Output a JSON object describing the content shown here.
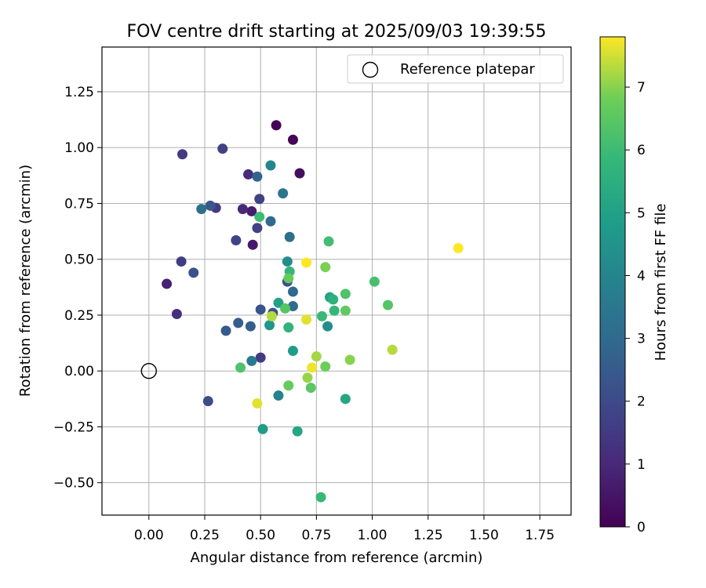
{
  "chart_data": {
    "type": "scatter",
    "title": "FOV centre drift starting at 2025/09/03 19:39:55",
    "xlabel": "Angular distance from reference (arcmin)",
    "ylabel": "Rotation from reference (arcmin)",
    "xlim": [
      -0.21,
      1.89
    ],
    "ylim": [
      -0.645,
      1.45
    ],
    "grid": true,
    "x_ticks": [
      0.0,
      0.25,
      0.5,
      0.75,
      1.0,
      1.25,
      1.5,
      1.75
    ],
    "x_tick_labels": [
      "0.00",
      "0.25",
      "0.50",
      "0.75",
      "1.00",
      "1.25",
      "1.50",
      "1.75"
    ],
    "y_ticks": [
      -0.5,
      -0.25,
      0.0,
      0.25,
      0.5,
      0.75,
      1.0,
      1.25
    ],
    "y_tick_labels": [
      "−0.50",
      "−0.25",
      "0.00",
      "0.25",
      "0.50",
      "0.75",
      "1.00",
      "1.25"
    ],
    "legend": {
      "label": "Reference platepar",
      "position": "top-right"
    },
    "reference_point": {
      "x": 0.0,
      "y": 0.0
    },
    "colorbar": {
      "label": "Hours from first FF file",
      "min": 0,
      "max": 7.8,
      "colormap": "viridis",
      "ticks": [
        0,
        1,
        2,
        3,
        4,
        5,
        6,
        7
      ],
      "tick_labels": [
        "0",
        "1",
        "2",
        "3",
        "4",
        "5",
        "6",
        "7"
      ]
    },
    "points": [
      {
        "x": 0.57,
        "y": 1.1,
        "hours": 0.05
      },
      {
        "x": 0.645,
        "y": 1.035,
        "hours": 0.1
      },
      {
        "x": 0.675,
        "y": 0.885,
        "hours": 0.3
      },
      {
        "x": 0.465,
        "y": 0.565,
        "hours": 0.6
      },
      {
        "x": 0.08,
        "y": 0.39,
        "hours": 0.8
      },
      {
        "x": 0.46,
        "y": 0.715,
        "hours": 0.7
      },
      {
        "x": 0.42,
        "y": 0.725,
        "hours": 1.0
      },
      {
        "x": 0.445,
        "y": 0.88,
        "hours": 1.1
      },
      {
        "x": 0.125,
        "y": 0.255,
        "hours": 1.2
      },
      {
        "x": 0.15,
        "y": 0.97,
        "hours": 1.5
      },
      {
        "x": 0.145,
        "y": 0.49,
        "hours": 1.6
      },
      {
        "x": 0.33,
        "y": 0.995,
        "hours": 1.7
      },
      {
        "x": 0.3,
        "y": 0.73,
        "hours": 1.5
      },
      {
        "x": 0.5,
        "y": 0.06,
        "hours": 1.6
      },
      {
        "x": 0.495,
        "y": 0.77,
        "hours": 1.7
      },
      {
        "x": 0.39,
        "y": 0.585,
        "hours": 1.8
      },
      {
        "x": 0.485,
        "y": 0.64,
        "hours": 1.7
      },
      {
        "x": 0.62,
        "y": 0.4,
        "hours": 2.1
      },
      {
        "x": 0.2,
        "y": 0.44,
        "hours": 2.2
      },
      {
        "x": 0.265,
        "y": -0.135,
        "hours": 2.0
      },
      {
        "x": 0.275,
        "y": 0.74,
        "hours": 2.4
      },
      {
        "x": 0.5,
        "y": 0.275,
        "hours": 2.3
      },
      {
        "x": 0.555,
        "y": 0.26,
        "hours": 2.3
      },
      {
        "x": 0.345,
        "y": 0.18,
        "hours": 2.5
      },
      {
        "x": 0.4,
        "y": 0.215,
        "hours": 2.6
      },
      {
        "x": 0.455,
        "y": 0.2,
        "hours": 2.6
      },
      {
        "x": 0.235,
        "y": 0.725,
        "hours": 3.2
      },
      {
        "x": 0.485,
        "y": 0.87,
        "hours": 2.8
      },
      {
        "x": 0.545,
        "y": 0.67,
        "hours": 3.0
      },
      {
        "x": 0.645,
        "y": 0.355,
        "hours": 3.0
      },
      {
        "x": 0.645,
        "y": 0.29,
        "hours": 3.1
      },
      {
        "x": 0.63,
        "y": 0.6,
        "hours": 3.2
      },
      {
        "x": 0.6,
        "y": 0.795,
        "hours": 3.4
      },
      {
        "x": 0.46,
        "y": 0.045,
        "hours": 3.6
      },
      {
        "x": 0.58,
        "y": -0.11,
        "hours": 3.9
      },
      {
        "x": 0.545,
        "y": 0.92,
        "hours": 4.0
      },
      {
        "x": 0.62,
        "y": 0.49,
        "hours": 4.3
      },
      {
        "x": 0.8,
        "y": 0.2,
        "hours": 4.3
      },
      {
        "x": 0.54,
        "y": 0.205,
        "hours": 4.6
      },
      {
        "x": 0.645,
        "y": 0.09,
        "hours": 4.8
      },
      {
        "x": 0.51,
        "y": -0.26,
        "hours": 4.8
      },
      {
        "x": 0.58,
        "y": 0.305,
        "hours": 5.0
      },
      {
        "x": 0.81,
        "y": 0.33,
        "hours": 5.1
      },
      {
        "x": 0.665,
        "y": -0.27,
        "hours": 5.2
      },
      {
        "x": 0.88,
        "y": -0.125,
        "hours": 5.2
      },
      {
        "x": 0.825,
        "y": 0.32,
        "hours": 5.6
      },
      {
        "x": 0.625,
        "y": 0.195,
        "hours": 5.7
      },
      {
        "x": 0.63,
        "y": 0.445,
        "hours": 5.8
      },
      {
        "x": 0.83,
        "y": 0.27,
        "hours": 5.8
      },
      {
        "x": 0.775,
        "y": 0.245,
        "hours": 5.9
      },
      {
        "x": 0.77,
        "y": -0.565,
        "hours": 5.9
      },
      {
        "x": 0.495,
        "y": 0.69,
        "hours": 6.0
      },
      {
        "x": 0.805,
        "y": 0.58,
        "hours": 6.1
      },
      {
        "x": 1.01,
        "y": 0.4,
        "hours": 6.2
      },
      {
        "x": 0.41,
        "y": 0.015,
        "hours": 6.3
      },
      {
        "x": 0.88,
        "y": 0.345,
        "hours": 6.3
      },
      {
        "x": 1.07,
        "y": 0.295,
        "hours": 6.4
      },
      {
        "x": 0.61,
        "y": 0.28,
        "hours": 6.4
      },
      {
        "x": 0.88,
        "y": 0.27,
        "hours": 6.6
      },
      {
        "x": 0.725,
        "y": -0.075,
        "hours": 6.5
      },
      {
        "x": 0.625,
        "y": -0.065,
        "hours": 6.7
      },
      {
        "x": 0.625,
        "y": 0.415,
        "hours": 6.7
      },
      {
        "x": 0.79,
        "y": 0.465,
        "hours": 6.9
      },
      {
        "x": 0.79,
        "y": 0.02,
        "hours": 6.8
      },
      {
        "x": 0.9,
        "y": 0.05,
        "hours": 7.0
      },
      {
        "x": 0.75,
        "y": 0.065,
        "hours": 7.2
      },
      {
        "x": 0.71,
        "y": -0.03,
        "hours": 7.1
      },
      {
        "x": 1.09,
        "y": 0.095,
        "hours": 7.3
      },
      {
        "x": 0.55,
        "y": 0.245,
        "hours": 7.3
      },
      {
        "x": 0.705,
        "y": 0.23,
        "hours": 7.6
      },
      {
        "x": 0.73,
        "y": 0.015,
        "hours": 7.7
      },
      {
        "x": 0.485,
        "y": -0.145,
        "hours": 7.6
      },
      {
        "x": 0.705,
        "y": 0.485,
        "hours": 7.8
      },
      {
        "x": 1.385,
        "y": 0.55,
        "hours": 7.8
      }
    ]
  }
}
